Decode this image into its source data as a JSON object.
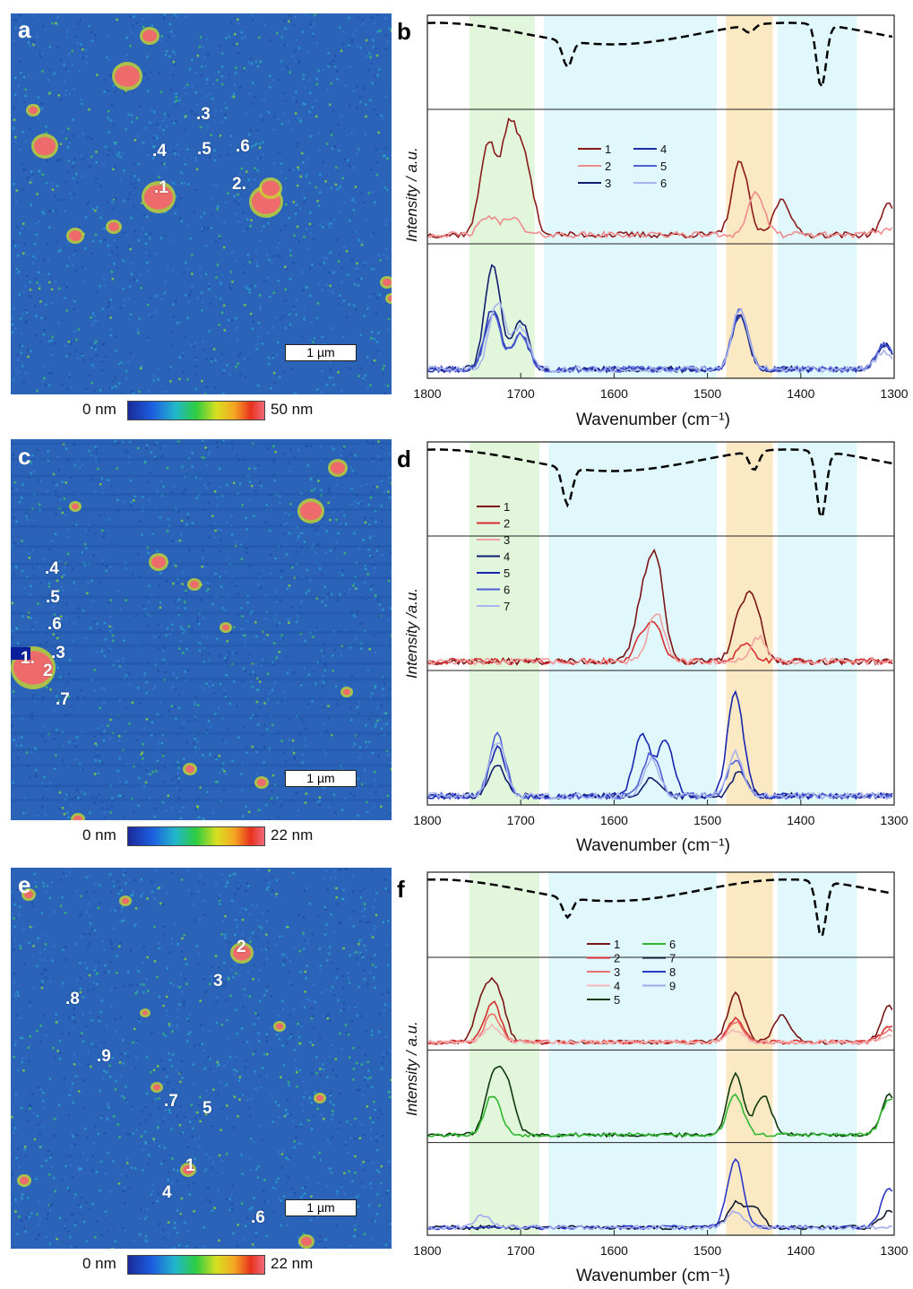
{
  "panels": {
    "a": {
      "label": "a",
      "colorbar": {
        "min": "0 nm",
        "max": "50 nm"
      },
      "scalebar": "1 µm",
      "points": [
        ".3",
        ".4",
        ".5",
        ".6",
        ".1",
        "2."
      ]
    },
    "b": {
      "label": "b",
      "ylabel": "Intensity / a.u.",
      "xlabel": "Wavenumber (cm⁻¹)",
      "legend": [
        "1",
        "2",
        "3",
        "4",
        "5",
        "6"
      ]
    },
    "c": {
      "label": "c",
      "colorbar": {
        "min": "0 nm",
        "max": "22 nm"
      },
      "scalebar": "1 µm",
      "points": [
        ".4",
        ".5",
        ".6",
        "1.",
        ".3",
        "2",
        ".7"
      ]
    },
    "d": {
      "label": "d",
      "ylabel": "Intensity /a.u.",
      "xlabel": "Wavenumber (cm⁻¹)",
      "legend": [
        "1",
        "2",
        "3",
        "4",
        "5",
        "6",
        "7"
      ]
    },
    "e": {
      "label": "e",
      "colorbar": {
        "min": "0 nm",
        "max": "22 nm"
      },
      "scalebar": "1 µm",
      "points": [
        "2",
        "3",
        ".8",
        ".9",
        ".7",
        "5",
        "1",
        "4",
        ".6"
      ]
    },
    "f": {
      "label": "f",
      "ylabel": "Intensity / a.u.",
      "xlabel": "Wavenumber (cm⁻¹)",
      "legend": [
        "1",
        "2",
        "3",
        "4",
        "5",
        "6",
        "7",
        "8",
        "9"
      ]
    }
  },
  "colors": {
    "afm_background": "#2a63b8",
    "band_green": "#e2f6dc",
    "band_cyan": "#e0f7fb",
    "band_orange": "#fbe9c3",
    "reference": "#000000",
    "series_b": [
      "#8b1a1a",
      "#f08c8c",
      "#0f1e6e",
      "#1e2fa8",
      "#5060d8",
      "#a8b4ee"
    ],
    "series_d": [
      "#7a1515",
      "#d62e2e",
      "#f2a0a0",
      "#0f1e6e",
      "#1826b0",
      "#4e5fd8",
      "#aab4ee"
    ],
    "series_f": [
      "#7a1515",
      "#d62e2e",
      "#ef6e6e",
      "#f4b8b8",
      "#0d3a0d",
      "#2fb82f",
      "#111a30",
      "#2c38c8",
      "#a0aaee"
    ]
  },
  "chart_data": [
    {
      "type": "line",
      "panel": "b",
      "xlabel": "Wavenumber (cm⁻¹)",
      "ylabel": "Intensity / a.u.",
      "xlim": [
        1800,
        1300
      ],
      "x_reversed": true,
      "xticks": [
        1800,
        1700,
        1600,
        1500,
        1400,
        1300
      ],
      "bands": [
        [
          1755,
          1685
        ],
        [
          1675,
          1490
        ],
        [
          1480,
          1430
        ],
        [
          1425,
          1340
        ]
      ],
      "reference": {
        "style": "dashed",
        "peaks": [
          [
            1650,
            0.35
          ],
          [
            1455,
            0.1
          ],
          [
            1378,
            0.85
          ]
        ]
      },
      "subplots": [
        {
          "series": [
            {
              "name": "1",
              "peaks": [
                [
                  1735,
                  0.75
                ],
                [
                  1712,
                  0.85
                ],
                [
                  1695,
                  0.55
                ],
                [
                  1465,
                  0.6
                ],
                [
                  1420,
                  0.3
                ],
                [
                  1305,
                  0.25
                ]
              ]
            },
            {
              "name": "2",
              "peaks": [
                [
                  1735,
                  0.15
                ],
                [
                  1710,
                  0.15
                ],
                [
                  1448,
                  0.35
                ],
                [
                  1305,
                  0.05
                ]
              ]
            }
          ]
        },
        {
          "series": [
            {
              "name": "3",
              "peaks": [
                [
                  1730,
                  0.85
                ],
                [
                  1700,
                  0.4
                ],
                [
                  1465,
                  0.45
                ],
                [
                  1310,
                  0.2
                ]
              ]
            },
            {
              "name": "4",
              "peaks": [
                [
                  1730,
                  0.5
                ],
                [
                  1700,
                  0.3
                ],
                [
                  1465,
                  0.45
                ],
                [
                  1310,
                  0.2
                ]
              ]
            },
            {
              "name": "5",
              "peaks": [
                [
                  1730,
                  0.45
                ],
                [
                  1700,
                  0.3
                ],
                [
                  1465,
                  0.5
                ],
                [
                  1310,
                  0.2
                ]
              ]
            },
            {
              "name": "6",
              "peaks": [
                [
                  1725,
                  0.55
                ],
                [
                  1700,
                  0.35
                ],
                [
                  1465,
                  0.5
                ],
                [
                  1310,
                  0.15
                ]
              ]
            }
          ]
        }
      ]
    },
    {
      "type": "line",
      "panel": "d",
      "xlabel": "Wavenumber (cm⁻¹)",
      "ylabel": "Intensity /a.u.",
      "xlim": [
        1800,
        1300
      ],
      "x_reversed": true,
      "xticks": [
        1800,
        1700,
        1600,
        1500,
        1400,
        1300
      ],
      "bands": [
        [
          1755,
          1680
        ],
        [
          1670,
          1490
        ],
        [
          1480,
          1430
        ],
        [
          1425,
          1340
        ]
      ],
      "reference": {
        "style": "dashed",
        "peaks": [
          [
            1650,
            0.5
          ],
          [
            1450,
            0.25
          ],
          [
            1378,
            0.9
          ]
        ]
      },
      "subplots": [
        {
          "series": [
            {
              "name": "1",
              "peaks": [
                [
                  1570,
                  0.45
                ],
                [
                  1555,
                  0.8
                ],
                [
                  1465,
                  0.35
                ],
                [
                  1450,
                  0.45
                ]
              ]
            },
            {
              "name": "2",
              "peaks": [
                [
                  1570,
                  0.2
                ],
                [
                  1555,
                  0.25
                ],
                [
                  1460,
                  0.15
                ]
              ]
            },
            {
              "name": "3",
              "peaks": [
                [
                  1555,
                  0.4
                ],
                [
                  1445,
                  0.2
                ]
              ]
            }
          ]
        },
        {
          "series": [
            {
              "name": "4",
              "peaks": [
                [
                  1725,
                  0.25
                ],
                [
                  1560,
                  0.15
                ],
                [
                  1465,
                  0.2
                ]
              ]
            },
            {
              "name": "5",
              "peaks": [
                [
                  1725,
                  0.4
                ],
                [
                  1570,
                  0.5
                ],
                [
                  1545,
                  0.45
                ],
                [
                  1470,
                  0.85
                ]
              ]
            },
            {
              "name": "6",
              "peaks": [
                [
                  1725,
                  0.5
                ],
                [
                  1560,
                  0.35
                ],
                [
                  1470,
                  0.3
                ]
              ]
            },
            {
              "name": "7",
              "peaks": [
                [
                  1725,
                  0.45
                ],
                [
                  1560,
                  0.3
                ],
                [
                  1470,
                  0.35
                ]
              ]
            }
          ]
        }
      ]
    },
    {
      "type": "line",
      "panel": "f",
      "xlabel": "Wavenumber (cm⁻¹)",
      "ylabel": "Intensity / a.u.",
      "xlim": [
        1800,
        1300
      ],
      "x_reversed": true,
      "xticks": [
        1800,
        1700,
        1600,
        1500,
        1400,
        1300
      ],
      "bands": [
        [
          1755,
          1680
        ],
        [
          1670,
          1490
        ],
        [
          1480,
          1430
        ],
        [
          1425,
          1340
        ]
      ],
      "reference": {
        "style": "dashed",
        "peaks": [
          [
            1650,
            0.3
          ],
          [
            1378,
            0.85
          ]
        ]
      },
      "subplots": [
        {
          "series": [
            {
              "name": "1",
              "peaks": [
                [
                  1740,
                  0.55
                ],
                [
                  1725,
                  0.6
                ],
                [
                  1470,
                  0.6
                ],
                [
                  1420,
                  0.35
                ],
                [
                  1305,
                  0.45
                ]
              ]
            },
            {
              "name": "2",
              "peaks": [
                [
                  1730,
                  0.5
                ],
                [
                  1470,
                  0.3
                ],
                [
                  1305,
                  0.2
                ]
              ]
            },
            {
              "name": "3",
              "peaks": [
                [
                  1730,
                  0.35
                ],
                [
                  1470,
                  0.25
                ],
                [
                  1305,
                  0.15
                ]
              ]
            },
            {
              "name": "4",
              "peaks": [
                [
                  1730,
                  0.2
                ],
                [
                  1470,
                  0.15
                ],
                [
                  1305,
                  0.1
                ]
              ]
            }
          ]
        },
        {
          "series": [
            {
              "name": "5",
              "peaks": [
                [
                  1730,
                  0.65
                ],
                [
                  1715,
                  0.6
                ],
                [
                  1470,
                  0.75
                ],
                [
                  1440,
                  0.5
                ],
                [
                  1305,
                  0.5
                ]
              ]
            },
            {
              "name": "6",
              "peaks": [
                [
                  1730,
                  0.5
                ],
                [
                  1470,
                  0.5
                ],
                [
                  1305,
                  0.45
                ]
              ]
            }
          ]
        },
        {
          "series": [
            {
              "name": "7",
              "peaks": [
                [
                  1470,
                  0.3
                ],
                [
                  1450,
                  0.25
                ],
                [
                  1305,
                  0.2
                ]
              ]
            },
            {
              "name": "8",
              "peaks": [
                [
                  1470,
                  0.85
                ],
                [
                  1305,
                  0.5
                ]
              ]
            },
            {
              "name": "9",
              "peaks": [
                [
                  1740,
                  0.15
                ],
                [
                  1470,
                  0.2
                ]
              ]
            }
          ]
        }
      ]
    }
  ]
}
